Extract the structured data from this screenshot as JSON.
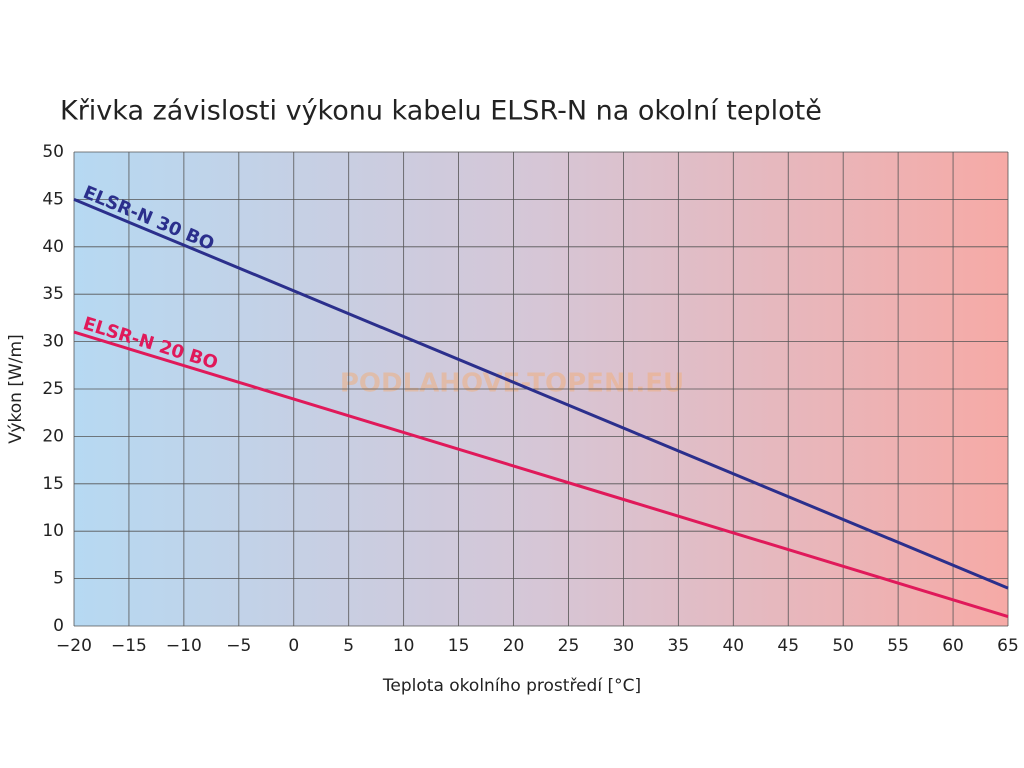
{
  "chart_data": {
    "type": "line",
    "title": "Křivka závislosti výkonu kabelu ELSR-N na okolní teplotě",
    "x_label": "Teplota okolního prostředí [°C]",
    "y_label": "Výkon [W/m]",
    "watermark": "PODLAHOVE-TOPENI.EU",
    "x": [
      -20,
      65
    ],
    "series": [
      {
        "name": "ELSR-N 30 BO",
        "color": "#2b2f8c",
        "values": [
          45,
          4
        ]
      },
      {
        "name": "ELSR-N 20 BO",
        "color": "#e0195a",
        "values": [
          31,
          1
        ]
      }
    ],
    "xlim": [
      -20,
      65
    ],
    "xticks": [
      {
        "value": -20,
        "label": "−20"
      },
      {
        "value": -15,
        "label": "−15"
      },
      {
        "value": -10,
        "label": "−10"
      },
      {
        "value": -5,
        "label": "−5"
      },
      0,
      5,
      10,
      15,
      20,
      25,
      30,
      35,
      40,
      45,
      50,
      55,
      60,
      65
    ],
    "ylim": [
      0,
      50
    ],
    "yticks": [
      0,
      5,
      10,
      15,
      20,
      25,
      30,
      35,
      40,
      45,
      50
    ],
    "grid": true
  }
}
